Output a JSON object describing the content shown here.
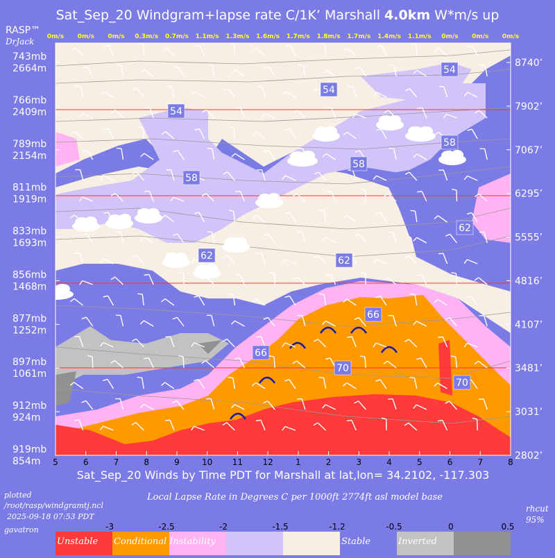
{
  "title": {
    "prefix": "Sat_Sep_20 Windgram+lapse rate C/1K’  Marshall ",
    "bold": "4.0km",
    "suffix": "  W*m/s up"
  },
  "brand": {
    "rasp": "RASP™",
    "drjack": "DrJack"
  },
  "chart_data": {
    "type": "heatmap",
    "title": "Sat_Sep_20 Windgram+lapse rate C/1K’  Marshall 4.0km  W*m/s up",
    "xlabel": "Sat_Sep_20 Winds by Time PDT for Marshall at lat,lon= 34.2102, -117.303",
    "x": [
      "5",
      "6",
      "7",
      "8",
      "9",
      "10",
      "11",
      "12",
      "1",
      "2",
      "3",
      "4",
      "5",
      "6",
      "7",
      "8"
    ],
    "wstar": [
      "0m/s",
      "0m/s",
      "0m/s",
      "0.3m/s",
      "0.7m/s",
      "1.1m/s",
      "1.3m/s",
      "1.6m/s",
      "1.7m/s",
      "1.8m/s",
      "1.7m/s",
      "1.4m/s",
      "1.1m/s",
      "0m/s",
      "0m/s",
      "0m/s"
    ],
    "left_axis": [
      {
        "mb": "743mb",
        "m": "2664m"
      },
      {
        "mb": "766mb",
        "m": "2409m"
      },
      {
        "mb": "789mb",
        "m": "2154m"
      },
      {
        "mb": "811mb",
        "m": "1919m"
      },
      {
        "mb": "833mb",
        "m": "1693m"
      },
      {
        "mb": "856mb",
        "m": "1468m"
      },
      {
        "mb": "877mb",
        "m": "1252m"
      },
      {
        "mb": "897mb",
        "m": "1061m"
      },
      {
        "mb": "912mb",
        "m": "924m"
      },
      {
        "mb": "919mb",
        "m": "854m"
      }
    ],
    "right_axis": [
      "8740’",
      "7902’",
      "7067’",
      "6295’",
      "5555’",
      "4816’",
      "4107’",
      "3481’",
      "3031’",
      "2802’"
    ],
    "contour_labels": [
      "54",
      "54",
      "54",
      "58",
      "58",
      "58",
      "62",
      "62",
      "62",
      "66",
      "66",
      "70",
      "70"
    ],
    "legend": {
      "title": "Local Lapse Rate in Degrees C per 1000ft  2774ft asl model base",
      "ticks": [
        "-3",
        "-2.5",
        "-2",
        "-1.5",
        "-1.2",
        "-0.5",
        "0",
        "0.5"
      ],
      "categories": [
        {
          "label": "Unstable",
          "color": "#ff3a3a"
        },
        {
          "label": "Conditional Instability",
          "color": "#ff9900"
        },
        {
          "label": "",
          "color": "#ffb3f2"
        },
        {
          "label": "",
          "color": "#d0c4f8"
        },
        {
          "label": "",
          "color": "#f7efe4"
        },
        {
          "label": "Stable",
          "color": "#7b7be6"
        },
        {
          "label": "Inverted",
          "color": "#c2c2c2"
        },
        {
          "label": "",
          "color": "#909090"
        }
      ]
    },
    "legend_placement": "bottom",
    "grid": true
  },
  "footer": {
    "plotted": "plotted",
    "path": "/root/rasp/windgramtj.ncl",
    "timestamp": "2025-09-18 07:53 PDT",
    "user": "gavatron",
    "rhcut": "rhcut",
    "pct": "95%"
  },
  "colors": {
    "background": "#7b7be6",
    "unstable": "#ff3a3a",
    "conditional": "#ff9900",
    "pink": "#ffb3f2",
    "lavender": "#d0c4f8",
    "cream": "#f7efe4",
    "stable": "#7b7be6",
    "inverted": "#c2c2c2",
    "inverted_dark": "#909090",
    "wstar_text": "#ffff33",
    "level_line": "#ff3030"
  }
}
